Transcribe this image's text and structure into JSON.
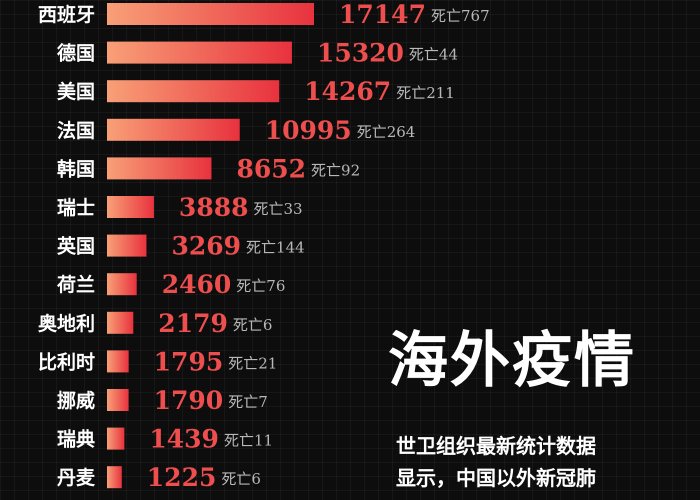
{
  "headline": "海外疫情",
  "description": [
    "世卫组织最新统计数据",
    "显示，中国以外新冠肺"
  ],
  "death_prefix": "死亡",
  "colors": {
    "background": "#0d0d0d",
    "bar_strong": "#e8323e",
    "bar_light": "#f8a077",
    "value_text": "#ef4e4e",
    "death_text": "#b8b8b8"
  },
  "chart_data": {
    "type": "bar",
    "orientation": "horizontal",
    "categories": [
      "西班牙",
      "德国",
      "美国",
      "法国",
      "韩国",
      "瑞士",
      "英国",
      "荷兰",
      "奥地利",
      "比利时",
      "挪威",
      "瑞典",
      "丹麦"
    ],
    "values": [
      17147,
      15320,
      14267,
      10995,
      8652,
      3888,
      3269,
      2460,
      2179,
      1795,
      1790,
      1439,
      1225
    ],
    "deaths": [
      767,
      44,
      211,
      264,
      92,
      33,
      144,
      76,
      6,
      21,
      7,
      11,
      6
    ],
    "title": "",
    "xlabel": "",
    "ylabel": "",
    "grid": false
  }
}
